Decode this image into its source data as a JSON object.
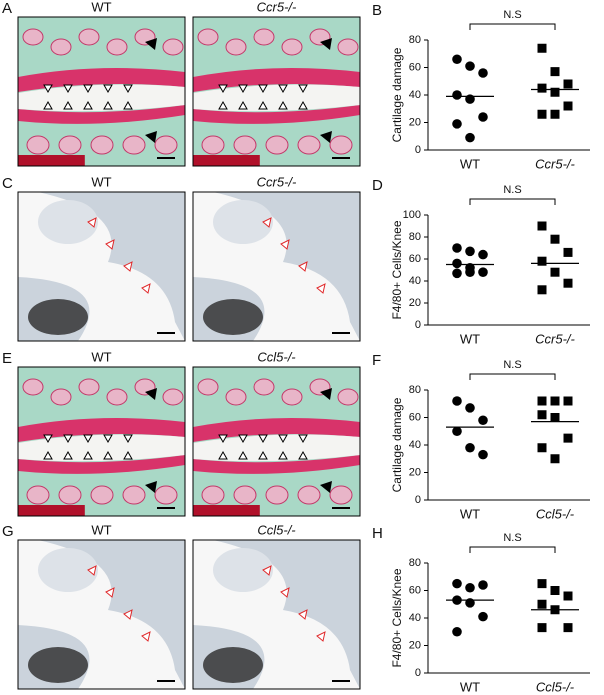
{
  "panels": [
    {
      "letter": "A",
      "images": [
        "WT",
        "Ccr5-/-"
      ]
    },
    {
      "letter": "C",
      "images": [
        "WT",
        "Ccr5-/-"
      ]
    },
    {
      "letter": "E",
      "images": [
        "WT",
        "Ccl5-/-"
      ]
    },
    {
      "letter": "G",
      "images": [
        "WT",
        "Ccl5-/-"
      ]
    }
  ],
  "chart_data": [
    {
      "type": "dot",
      "panel": "B",
      "ylabel": "Cartilage damage",
      "annotation": "N.S",
      "ylim": [
        0,
        80
      ],
      "yticks": [
        0,
        20,
        40,
        60,
        80
      ],
      "series": [
        {
          "name": "WT",
          "marker": "circle",
          "values": [
            66,
            61,
            56,
            40,
            37,
            24,
            19,
            9
          ],
          "mean": 39
        },
        {
          "name": "Ccr5-/-",
          "marker": "square",
          "values": [
            74,
            57,
            48,
            45,
            42,
            32,
            26,
            26
          ],
          "mean": 44
        }
      ]
    },
    {
      "type": "dot",
      "panel": "D",
      "ylabel": "F4/80+ Cells/Knee",
      "annotation": "N.S",
      "ylim": [
        0,
        100
      ],
      "yticks": [
        0,
        20,
        40,
        60,
        80,
        100
      ],
      "series": [
        {
          "name": "WT",
          "marker": "circle",
          "values": [
            70,
            67,
            64,
            56,
            52,
            48,
            47,
            48
          ],
          "mean": 55
        },
        {
          "name": "Ccr5-/-",
          "marker": "square",
          "values": [
            90,
            78,
            66,
            58,
            48,
            38,
            32
          ],
          "mean": 56
        }
      ]
    },
    {
      "type": "dot",
      "panel": "F",
      "ylabel": "Cartilage damage",
      "annotation": "N.S",
      "ylim": [
        0,
        80
      ],
      "yticks": [
        0,
        20,
        40,
        60,
        80
      ],
      "series": [
        {
          "name": "WT",
          "marker": "circle",
          "values": [
            72,
            67,
            58,
            50,
            38,
            33
          ],
          "mean": 53
        },
        {
          "name": "Ccl5-/-",
          "marker": "square",
          "values": [
            72,
            72,
            72,
            62,
            60,
            45,
            38,
            30
          ],
          "mean": 57
        }
      ]
    },
    {
      "type": "dot",
      "panel": "H",
      "ylabel": "F4/80+ Cells/Knee",
      "annotation": "N.S",
      "ylim": [
        0,
        80
      ],
      "yticks": [
        0,
        20,
        40,
        60,
        80
      ],
      "series": [
        {
          "name": "WT",
          "marker": "circle",
          "values": [
            65,
            62,
            64,
            53,
            51,
            41,
            30
          ],
          "mean": 53
        },
        {
          "name": "Ccl5-/-",
          "marker": "square",
          "values": [
            65,
            60,
            56,
            50,
            46,
            33,
            33
          ],
          "mean": 46
        }
      ]
    }
  ]
}
